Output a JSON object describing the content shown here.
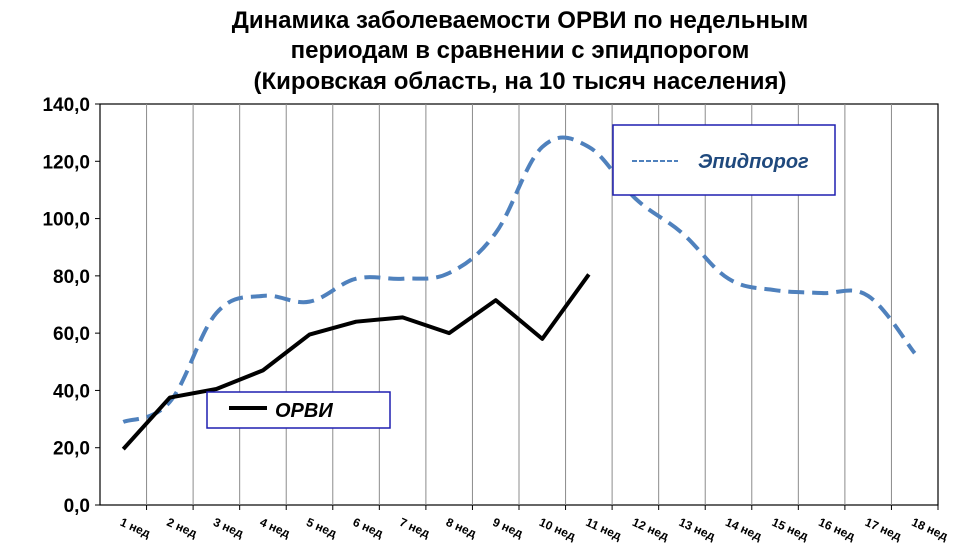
{
  "chart_data": {
    "type": "line",
    "title_lines": [
      "Динамика заболеваемости ОРВИ  по недельным",
      "периодам в сравнении с эпидпорогом",
      "(Кировская область, на 10 тысяч населения)"
    ],
    "categories": [
      "1 нед",
      "2 нед",
      "3 нед",
      "4 нед",
      "5 нед",
      "6 нед",
      "7 нед",
      "8 нед",
      "9 нед",
      "10 нед",
      "11 нед",
      "12 нед",
      "13 нед",
      "14 нед",
      "15 нед",
      "16 нед",
      "17 нед",
      "18 нед"
    ],
    "y_ticks": [
      "0,0",
      "20,0",
      "40,0",
      "60,0",
      "80,0",
      "100,0",
      "120,0",
      "140,0"
    ],
    "ylim": [
      0,
      140
    ],
    "grid": "vertical",
    "series": [
      {
        "name": "Эпидпорог",
        "style": "dashed",
        "color": "#4F81BD",
        "values": [
          29,
          36,
          67,
          73,
          71,
          79,
          79,
          81,
          95,
          125,
          125,
          107,
          95,
          79,
          75,
          74,
          73,
          53
        ]
      },
      {
        "name": "ОРВИ",
        "style": "solid",
        "color": "#000000",
        "values": [
          19.5,
          37.5,
          40.5,
          47,
          59.5,
          64,
          65.5,
          60,
          71.5,
          58,
          80.5,
          null,
          null,
          null,
          null,
          null,
          null,
          null
        ]
      }
    ],
    "legend": {
      "epid": {
        "label": "Эпидпорог",
        "placement": "top-right"
      },
      "orvi": {
        "label": "ОРВИ",
        "placement": "bottom-left"
      }
    }
  }
}
